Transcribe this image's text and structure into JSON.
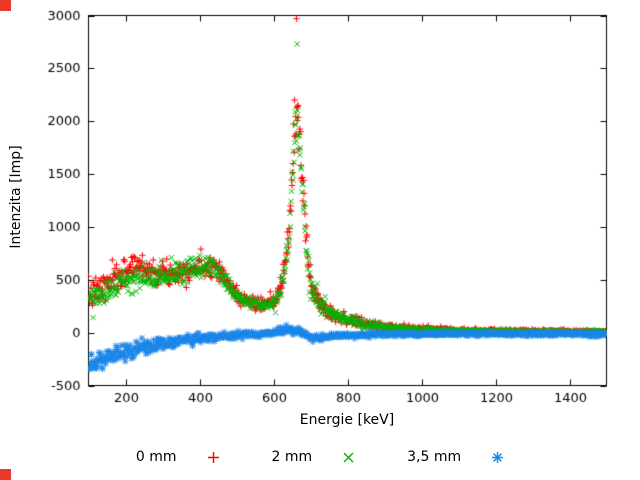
{
  "chart_data": {
    "type": "scatter",
    "title": "",
    "xlabel": "Energie [keV]",
    "ylabel": "Intenzita [Imp]",
    "xlim": [
      100,
      1500
    ],
    "ylim": [
      -500,
      3000
    ],
    "xticks": [
      200,
      400,
      600,
      800,
      1000,
      1200,
      1400
    ],
    "yticks": [
      -500,
      0,
      500,
      1000,
      1500,
      2000,
      2500,
      3000
    ],
    "grid": false,
    "legend_position": "below-center",
    "axis_color": "#000000",
    "series": [
      {
        "name": "0 mm",
        "marker": "plus",
        "color": "#ff0000",
        "step_keV": 1.4,
        "envelope": [
          [
            100,
            340
          ],
          [
            140,
            430
          ],
          [
            180,
            520
          ],
          [
            200,
            580
          ],
          [
            215,
            630
          ],
          [
            230,
            645
          ],
          [
            245,
            630
          ],
          [
            260,
            600
          ],
          [
            280,
            575
          ],
          [
            300,
            560
          ],
          [
            330,
            570
          ],
          [
            360,
            590
          ],
          [
            390,
            610
          ],
          [
            420,
            635
          ],
          [
            440,
            640
          ],
          [
            455,
            610
          ],
          [
            470,
            500
          ],
          [
            490,
            400
          ],
          [
            510,
            330
          ],
          [
            535,
            290
          ],
          [
            560,
            265
          ],
          [
            585,
            265
          ],
          [
            605,
            300
          ],
          [
            620,
            420
          ],
          [
            630,
            620
          ],
          [
            640,
            900
          ],
          [
            648,
            1300
          ],
          [
            655,
            1750
          ],
          [
            660,
            2000
          ],
          [
            663,
            2060
          ],
          [
            666,
            2000
          ],
          [
            672,
            1800
          ],
          [
            678,
            1450
          ],
          [
            685,
            1050
          ],
          [
            692,
            730
          ],
          [
            700,
            500
          ],
          [
            710,
            380
          ],
          [
            725,
            285
          ],
          [
            740,
            230
          ],
          [
            760,
            180
          ],
          [
            790,
            135
          ],
          [
            820,
            105
          ],
          [
            860,
            75
          ],
          [
            900,
            55
          ],
          [
            950,
            42
          ],
          [
            1000,
            32
          ],
          [
            1100,
            22
          ],
          [
            1200,
            16
          ],
          [
            1300,
            12
          ],
          [
            1400,
            10
          ],
          [
            1500,
            9
          ]
        ],
        "noise": [
          [
            100,
            70
          ],
          [
            200,
            65
          ],
          [
            300,
            55
          ],
          [
            450,
            50
          ],
          [
            520,
            35
          ],
          [
            580,
            28
          ],
          [
            620,
            50
          ],
          [
            645,
            90
          ],
          [
            662,
            110
          ],
          [
            680,
            90
          ],
          [
            700,
            60
          ],
          [
            730,
            40
          ],
          [
            780,
            28
          ],
          [
            850,
            20
          ],
          [
            950,
            15
          ],
          [
            1100,
            10
          ],
          [
            1300,
            8
          ],
          [
            1500,
            7
          ]
        ],
        "outliers": [
          [
            662,
            2970
          ],
          [
            657,
            2200
          ],
          [
            666,
            2150
          ]
        ]
      },
      {
        "name": "2 mm",
        "marker": "cross",
        "color": "#00b400",
        "step_keV": 1.4,
        "envelope": [
          [
            100,
            320
          ],
          [
            140,
            400
          ],
          [
            180,
            455
          ],
          [
            200,
            470
          ],
          [
            240,
            500
          ],
          [
            280,
            530
          ],
          [
            320,
            555
          ],
          [
            360,
            585
          ],
          [
            400,
            620
          ],
          [
            430,
            635
          ],
          [
            450,
            600
          ],
          [
            470,
            490
          ],
          [
            490,
            395
          ],
          [
            510,
            325
          ],
          [
            535,
            285
          ],
          [
            560,
            265
          ],
          [
            585,
            265
          ],
          [
            605,
            295
          ],
          [
            620,
            410
          ],
          [
            630,
            590
          ],
          [
            640,
            860
          ],
          [
            648,
            1250
          ],
          [
            655,
            1680
          ],
          [
            660,
            1930
          ],
          [
            663,
            1980
          ],
          [
            666,
            1930
          ],
          [
            672,
            1730
          ],
          [
            678,
            1390
          ],
          [
            685,
            1000
          ],
          [
            692,
            700
          ],
          [
            700,
            480
          ],
          [
            710,
            365
          ],
          [
            725,
            275
          ],
          [
            740,
            220
          ],
          [
            760,
            172
          ],
          [
            790,
            130
          ],
          [
            820,
            100
          ],
          [
            860,
            70
          ],
          [
            900,
            52
          ],
          [
            950,
            38
          ],
          [
            1000,
            28
          ],
          [
            1100,
            19
          ],
          [
            1200,
            13
          ],
          [
            1300,
            10
          ],
          [
            1400,
            8
          ],
          [
            1500,
            7
          ]
        ],
        "noise": [
          [
            100,
            65
          ],
          [
            200,
            58
          ],
          [
            300,
            50
          ],
          [
            450,
            46
          ],
          [
            520,
            33
          ],
          [
            580,
            26
          ],
          [
            620,
            46
          ],
          [
            645,
            85
          ],
          [
            662,
            100
          ],
          [
            680,
            85
          ],
          [
            700,
            55
          ],
          [
            730,
            38
          ],
          [
            780,
            26
          ],
          [
            850,
            18
          ],
          [
            950,
            14
          ],
          [
            1100,
            9
          ],
          [
            1300,
            7
          ],
          [
            1500,
            6
          ]
        ],
        "outliers": [
          [
            664,
            2730
          ],
          [
            659,
            2090
          ]
        ]
      },
      {
        "name": "3,5 mm",
        "marker": "star",
        "color": "#1a86e8",
        "step_keV": 1.4,
        "envelope": [
          [
            100,
            -300
          ],
          [
            130,
            -270
          ],
          [
            160,
            -225
          ],
          [
            200,
            -175
          ],
          [
            250,
            -140
          ],
          [
            300,
            -105
          ],
          [
            350,
            -75
          ],
          [
            400,
            -55
          ],
          [
            450,
            -40
          ],
          [
            500,
            -28
          ],
          [
            550,
            -18
          ],
          [
            600,
            0
          ],
          [
            625,
            20
          ],
          [
            650,
            30
          ],
          [
            665,
            15
          ],
          [
            695,
            -30
          ],
          [
            720,
            -55
          ],
          [
            745,
            -40
          ],
          [
            780,
            -25
          ],
          [
            850,
            -18
          ],
          [
            1000,
            -12
          ],
          [
            1200,
            -10
          ],
          [
            1400,
            -12
          ],
          [
            1500,
            -15
          ]
        ],
        "noise": [
          [
            100,
            45
          ],
          [
            200,
            38
          ],
          [
            300,
            30
          ],
          [
            400,
            22
          ],
          [
            500,
            15
          ],
          [
            600,
            15
          ],
          [
            650,
            18
          ],
          [
            720,
            15
          ],
          [
            800,
            12
          ],
          [
            900,
            10
          ],
          [
            1200,
            9
          ],
          [
            1500,
            9
          ]
        ],
        "outliers": []
      }
    ]
  },
  "decorations": {
    "corner_marker_color": "#e8392a"
  }
}
